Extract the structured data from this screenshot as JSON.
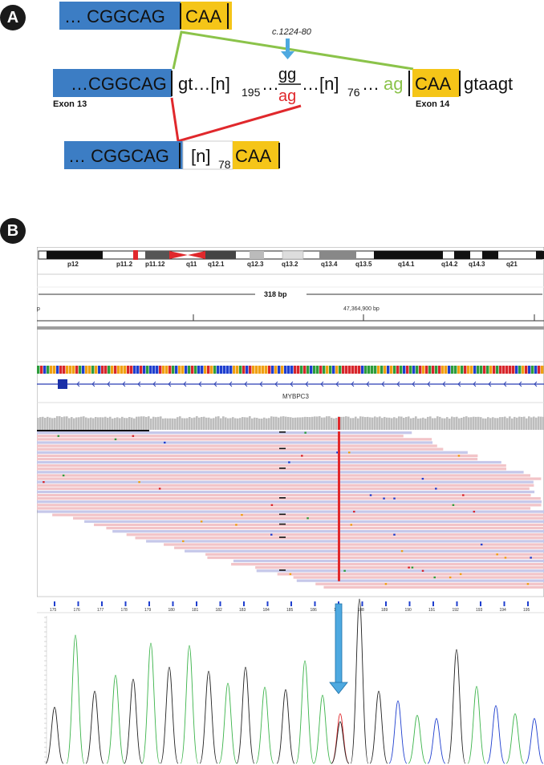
{
  "panelA": {
    "label": "A",
    "top_segment": {
      "exon13_text": "… CGGCAG",
      "exon14_text": "CAA"
    },
    "middle": {
      "exon13_text": "…CGGCAG",
      "intron_prefix": "gt…[n]",
      "intron_sub1": "195",
      "dots": "…",
      "gg": "gg",
      "ag_red": "ag",
      "intron_mid": "…[n]",
      "intron_sub2": "76",
      "intron_dots": "…",
      "ag_green": "ag",
      "exon14_text": "CAA",
      "after": "gtaagt",
      "exon13_label": "Exon 13",
      "exon14_label": "Exon 14",
      "variant_label": "c.1224-80"
    },
    "bottom_segment": {
      "exon13_text": "… CGGCAG",
      "insert": "[n]",
      "insert_sub": "78",
      "exon14_text": "CAA"
    },
    "colors": {
      "exon13": "#3c7dc4",
      "exon14": "#f5c518",
      "green": "#8bc34a",
      "red": "#e0282c",
      "arrow": "#4ea9e0"
    }
  },
  "panelB": {
    "label": "B",
    "ideogram_bands": [
      "p12",
      "p11.2",
      "p11.12",
      "q11",
      "q12.1",
      "q12.3",
      "q13.2",
      "q13.4",
      "q13.5",
      "q14.1",
      "q14.2",
      "q14.3",
      "q21"
    ],
    "window_size": "318 bp",
    "position_label": "47,364,900 bp",
    "left_edge_label": "p",
    "gene_name": "MYBPC3",
    "sequence_axis_numbers": [
      "175",
      "176",
      "177",
      "178",
      "179",
      "180",
      "181",
      "182",
      "183",
      "184",
      "185",
      "186",
      "187",
      "188",
      "189",
      "190",
      "191",
      "192",
      "193",
      "194",
      "195"
    ],
    "colors": {
      "forward_read": "#f2c4c8",
      "reverse_read": "#c6c8ea",
      "mismatch": "#e0282c",
      "arrow": "#4ea9e0",
      "coverage": "#bdbdbd"
    }
  }
}
